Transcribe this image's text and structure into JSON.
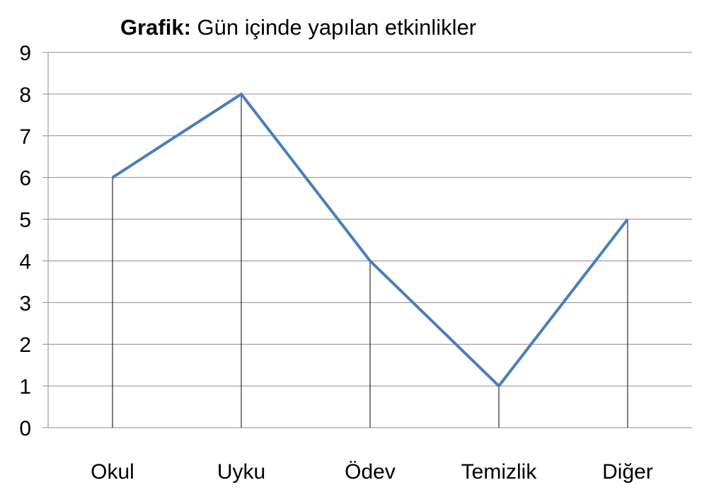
{
  "chart_data": {
    "type": "line",
    "title_bold": "Grafik:",
    "title_rest": " Gün içinde yapılan etkinlikler",
    "categories": [
      "Okul",
      "Uyku",
      "Ödev",
      "Temizlik",
      "Diğer"
    ],
    "values": [
      6,
      8,
      4,
      1,
      5
    ],
    "ylim": [
      0,
      9
    ],
    "yticks": [
      0,
      1,
      2,
      3,
      4,
      5,
      6,
      7,
      8,
      9
    ],
    "grid": true,
    "drop_lines": true,
    "line_color": "#4a7ebb",
    "grid_color": "#8c8c8c"
  }
}
